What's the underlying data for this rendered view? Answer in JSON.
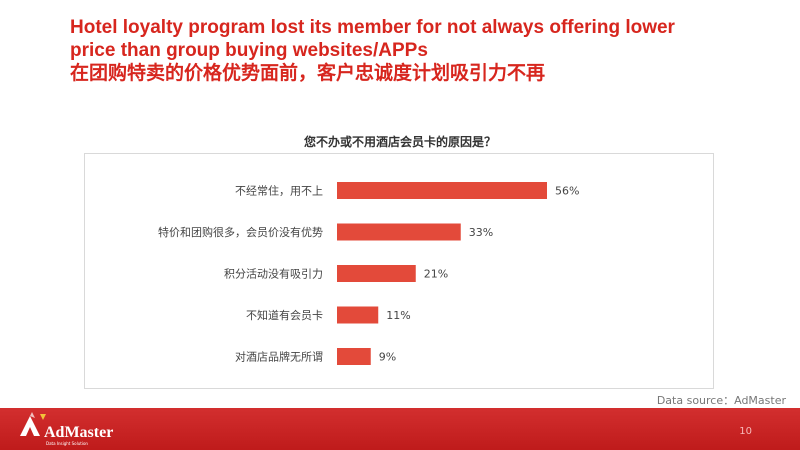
{
  "slide": {
    "title_en": "Hotel loyalty program lost its member for not always offering lower price than group buying websites/APPs",
    "title_en_line1": "Hotel loyalty program lost its member for not always offering lower",
    "title_en_line2": "price than group buying websites/APPs",
    "title_cn": "在团购特卖的价格优势面前，客户忠诚度计划吸引力不再",
    "source": "Data source：AdMaster",
    "page_number": "10",
    "logo_text": "AdMaster",
    "logo_tagline": "Data Insight Solution"
  },
  "colors": {
    "title": "#d7261e",
    "bar": "#e34a3a",
    "footer": "#cf1d1d"
  },
  "chart_data": {
    "type": "bar",
    "orientation": "horizontal",
    "title": "您不办或不用酒店会员卡的原因是？",
    "categories": [
      "不经常住，用不上",
      "特价和团购很多，会员价没有优势",
      "积分活动没有吸引力",
      "不知道有会员卡",
      "对酒店品牌无所谓"
    ],
    "values": [
      56,
      33,
      21,
      11,
      9
    ],
    "value_labels": [
      "56%",
      "33%",
      "21%",
      "11%",
      "9%"
    ],
    "unit": "%",
    "xlim": [
      0,
      100
    ],
    "grid": false,
    "legend": "none"
  }
}
